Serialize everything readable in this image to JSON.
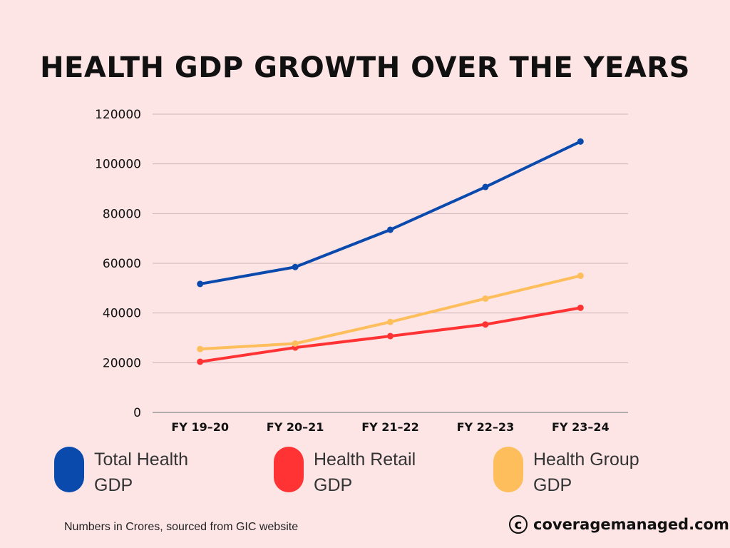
{
  "chart_data": {
    "type": "line",
    "title": "HEALTH GDP GROWTH OVER THE YEARS",
    "categories": [
      "FY 19-20",
      "FY 20-21",
      "FY 21-22",
      "FY 22-23",
      "FY 23-24"
    ],
    "ylim": [
      0,
      120000
    ],
    "yticks": [
      "0",
      "20000",
      "40000",
      "60000",
      "80000",
      "100000",
      "120000"
    ],
    "grid": true,
    "legend_position": "bottom",
    "series": [
      {
        "name": "Total Health GDP",
        "color": "#0a4aad",
        "values": [
          51700,
          58500,
          73500,
          90700,
          109000
        ]
      },
      {
        "name": "Health Retail GDP",
        "color": "#ff3333",
        "values": [
          20400,
          26100,
          30700,
          35400,
          42100
        ]
      },
      {
        "name": "Health Group GDP",
        "color": "#ffbe5c",
        "values": [
          25500,
          27700,
          36400,
          45800,
          55000
        ]
      }
    ]
  },
  "footnote": "Numbers in Crores, sourced from GIC website",
  "brand": {
    "symbol": "c",
    "text": "coveragemanaged.com"
  }
}
